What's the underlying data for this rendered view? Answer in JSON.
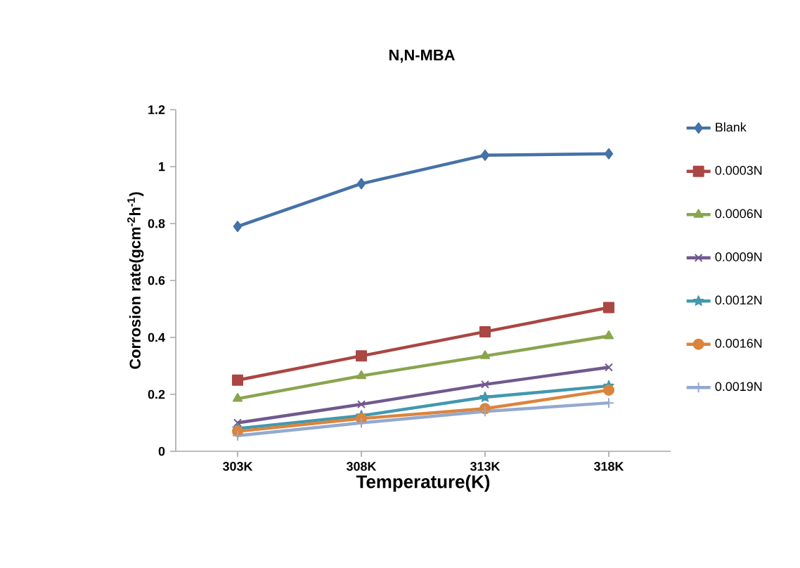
{
  "chart_data": {
    "type": "line",
    "title": "N,N-MBA",
    "xlabel": "Temperature(K)",
    "ylabel": "Corrosion rate(gcm$^{-2}$h$^{-1}$)",
    "categories": [
      "303K",
      "308K",
      "313K",
      "318K"
    ],
    "ylim": [
      0,
      1.2
    ],
    "yticks": [
      0,
      0.2,
      0.4,
      0.6,
      0.8,
      1,
      1.2
    ],
    "grid": false,
    "legend": "right",
    "line_style": "solid",
    "series": [
      {
        "name": "Blank",
        "color": "#4572a7",
        "marker": "diamond",
        "values": [
          0.79,
          0.94,
          1.04,
          1.045
        ]
      },
      {
        "name": "0.0003N",
        "color": "#aa4643",
        "marker": "square",
        "values": [
          0.25,
          0.335,
          0.42,
          0.505
        ]
      },
      {
        "name": "0.0006N",
        "color": "#89a54e",
        "marker": "triangle",
        "values": [
          0.185,
          0.265,
          0.335,
          0.405
        ]
      },
      {
        "name": "0.0009N",
        "color": "#71588f",
        "marker": "cross",
        "values": [
          0.1,
          0.165,
          0.235,
          0.295
        ]
      },
      {
        "name": "0.0012N",
        "color": "#4198af",
        "marker": "star",
        "values": [
          0.08,
          0.125,
          0.19,
          0.23
        ]
      },
      {
        "name": "0.0016N",
        "color": "#db843d",
        "marker": "circle",
        "values": [
          0.07,
          0.115,
          0.15,
          0.215
        ]
      },
      {
        "name": "0.0019N",
        "color": "#93a9cf",
        "marker": "plus",
        "values": [
          0.055,
          0.1,
          0.14,
          0.17
        ]
      }
    ]
  }
}
